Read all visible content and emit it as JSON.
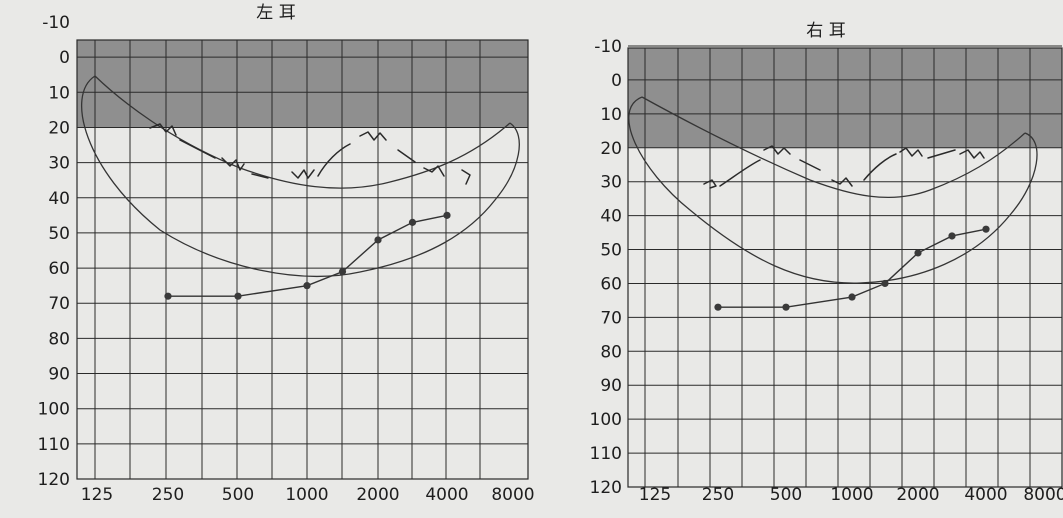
{
  "chart_data": [
    {
      "type": "line",
      "title": "左 耳",
      "x_ticks": [
        "125",
        "250",
        "500",
        "1000",
        "2000",
        "4000",
        "8000"
      ],
      "y_ticks": [
        "-10",
        "0",
        "10",
        "20",
        "30",
        "40",
        "50",
        "60",
        "70",
        "80",
        "90",
        "100",
        "110",
        "120"
      ],
      "ylim": [
        -10,
        120
      ],
      "y_inverted": true,
      "grid": true,
      "shaded_band": {
        "from": -10,
        "to": 20
      },
      "series": [
        {
          "points": [
            {
              "x": 250,
              "y": 68
            },
            {
              "x": 500,
              "y": 68
            },
            {
              "x": 1000,
              "y": 65
            },
            {
              "x": 1414,
              "y": 61
            },
            {
              "x": 2000,
              "y": 52
            },
            {
              "x": 2828,
              "y": 47
            },
            {
              "x": 4000,
              "y": 45
            }
          ]
        }
      ]
    },
    {
      "type": "line",
      "title": "右 耳",
      "x_ticks": [
        "125",
        "250",
        "500",
        "1000",
        "2000",
        "4000",
        "8000"
      ],
      "y_ticks": [
        "-10",
        "0",
        "10",
        "20",
        "30",
        "40",
        "50",
        "60",
        "70",
        "80",
        "90",
        "100",
        "110",
        "120"
      ],
      "ylim": [
        -10,
        120
      ],
      "y_inverted": true,
      "grid": true,
      "shaded_band": {
        "from": -10,
        "to": 20
      },
      "series": [
        {
          "points": [
            {
              "x": 250,
              "y": 67
            },
            {
              "x": 500,
              "y": 67
            },
            {
              "x": 1000,
              "y": 64
            },
            {
              "x": 1414,
              "y": 60
            },
            {
              "x": 2000,
              "y": 51
            },
            {
              "x": 2828,
              "y": 46
            },
            {
              "x": 4000,
              "y": 44
            }
          ]
        }
      ]
    }
  ]
}
